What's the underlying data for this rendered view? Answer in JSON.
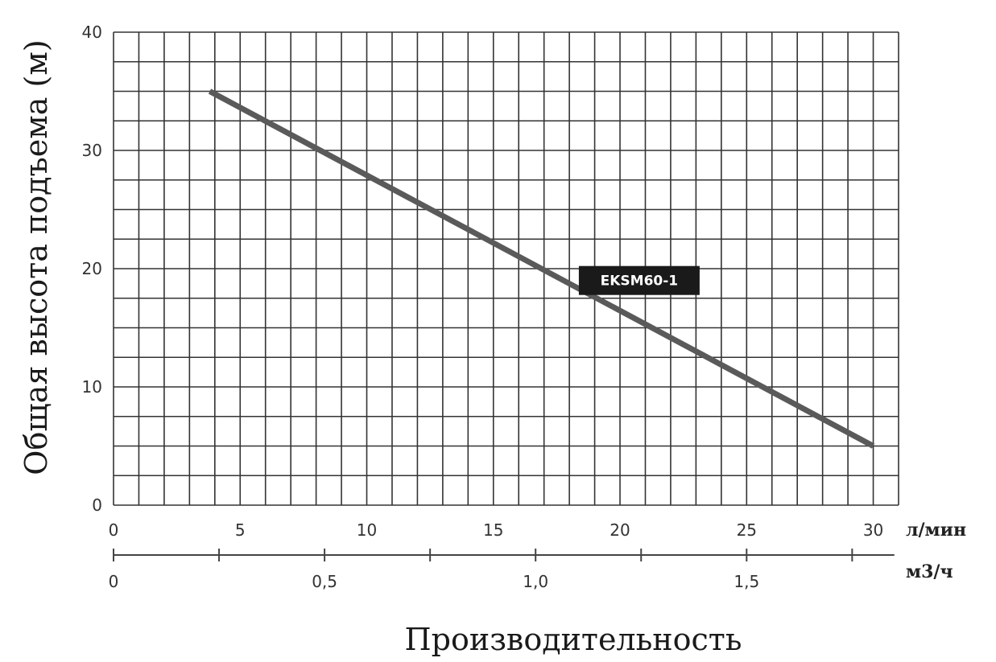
{
  "chart_data": {
    "type": "line",
    "title": "",
    "ylabel": "Общая высота подъема (м)",
    "xlabel": "Производительность",
    "x_unit": "л/мин",
    "x2_unit": "м3/ч",
    "xlim": [
      0,
      31
    ],
    "ylim": [
      0,
      40
    ],
    "x_ticks": [
      "0",
      "5",
      "10",
      "15",
      "20",
      "25",
      "30"
    ],
    "x2_ticks": [
      "0",
      "0,5",
      "1,0",
      "1,5"
    ],
    "y_ticks": [
      "0",
      "10",
      "20",
      "30",
      "40"
    ],
    "grid": true,
    "series": [
      {
        "name": "EKSM60-1",
        "x": [
          3.8,
          30
        ],
        "y": [
          35,
          5
        ]
      }
    ],
    "colors": {
      "line": "#5a5a5a",
      "grid": "#333333",
      "label_bg": "#1a1a1a",
      "label_text": "#ffffff"
    }
  }
}
